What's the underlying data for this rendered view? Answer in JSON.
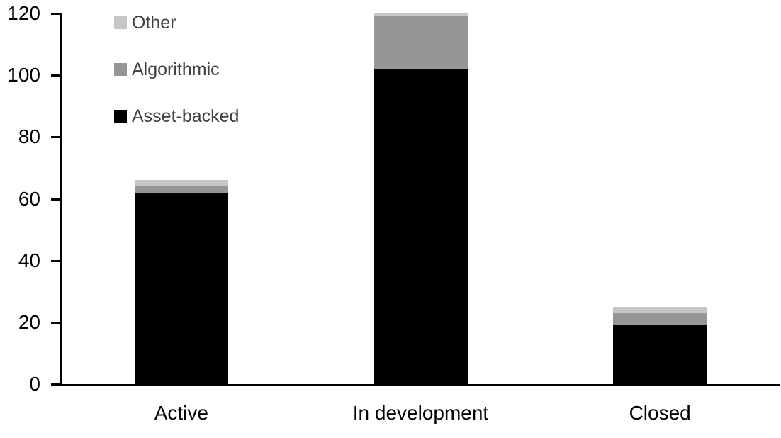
{
  "chart_data": {
    "type": "bar",
    "stacked": true,
    "categories": [
      "Active",
      "In development",
      "Closed"
    ],
    "series": [
      {
        "name": "Asset-backed",
        "color": "#000000",
        "values": [
          62,
          102,
          19
        ]
      },
      {
        "name": "Algorithmic",
        "color": "#969696",
        "values": [
          2,
          17,
          4
        ]
      },
      {
        "name": "Other",
        "color": "#C6C6C6",
        "values": [
          2,
          1,
          2
        ]
      }
    ],
    "totals": [
      66,
      120,
      25
    ],
    "ylim": [
      0,
      120
    ],
    "yticks": [
      0,
      20,
      40,
      60,
      80,
      100,
      120
    ],
    "grid": false,
    "legend_position": "top-left",
    "xlabel": "",
    "ylabel": ""
  },
  "legend": {
    "items": [
      {
        "label": "Other",
        "color": "#C6C6C6"
      },
      {
        "label": "Algorithmic",
        "color": "#969696"
      },
      {
        "label": "Asset-backed",
        "color": "#000000"
      }
    ]
  },
  "axis": {
    "y_tick_labels": [
      "0",
      "20",
      "40",
      "60",
      "80",
      "100",
      "120"
    ],
    "x_labels": [
      "Active",
      "In development",
      "Closed"
    ]
  },
  "colors": {
    "background": "#FFFFFF",
    "axis": "#000000",
    "tick_label_text": "#000000",
    "x_label_text": "#000000",
    "legend_text": "#404040"
  }
}
